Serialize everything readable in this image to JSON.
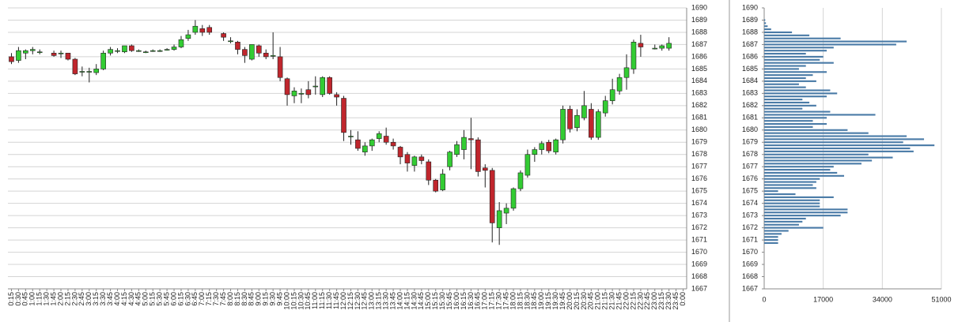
{
  "chart_data": [
    {
      "type": "candlestick",
      "categories": [
        "0:15",
        "0:30",
        "0:45",
        "1:00",
        "1:15",
        "1:30",
        "1:45",
        "2:00",
        "2:15",
        "2:30",
        "2:45",
        "3:00",
        "3:15",
        "3:30",
        "3:45",
        "4:00",
        "4:15",
        "4:30",
        "4:45",
        "5:00",
        "5:15",
        "5:30",
        "5:45",
        "6:00",
        "6:15",
        "6:30",
        "6:45",
        "7:00",
        "7:15",
        "7:30",
        "7:45",
        "8:00",
        "8:15",
        "8:30",
        "8:45",
        "9:00",
        "9:15",
        "9:30",
        "9:45",
        "10:00",
        "10:15",
        "10:30",
        "10:45",
        "11:00",
        "11:15",
        "11:30",
        "11:45",
        "12:00",
        "12:15",
        "12:30",
        "12:45",
        "13:00",
        "13:15",
        "13:30",
        "13:45",
        "14:00",
        "14:15",
        "14:30",
        "14:45",
        "15:00",
        "15:15",
        "15:30",
        "15:45",
        "16:00",
        "16:15",
        "16:30",
        "16:45",
        "17:00",
        "17:15",
        "17:30",
        "17:45",
        "18:00",
        "18:15",
        "18:30",
        "18:45",
        "19:00",
        "19:15",
        "19:30",
        "19:45",
        "20:00",
        "20:15",
        "20:30",
        "20:45",
        "21:00",
        "21:15",
        "21:30",
        "21:45",
        "22:00",
        "22:15",
        "22:30",
        "22:45",
        "23:00",
        "23:15",
        "23:30",
        "23:45",
        "0:00"
      ],
      "open": [
        1686.0,
        1685.7,
        1686.3,
        1686.5,
        1686.4,
        null,
        1686.3,
        1686.3,
        1686.3,
        1685.8,
        1684.8,
        1684.8,
        1684.7,
        1685.0,
        1686.3,
        1686.5,
        1686.4,
        1686.9,
        1686.5,
        1686.4,
        1686.5,
        1686.5,
        1686.6,
        1686.6,
        1686.8,
        1687.5,
        1688.0,
        1688.3,
        1688.4,
        null,
        1687.9,
        1687.3,
        1687.2,
        1686.6,
        1685.8,
        1686.9,
        1686.3,
        1686.1,
        1686.0,
        1684.2,
        1682.8,
        1683.0,
        1683.3,
        1683.6,
        1682.9,
        1684.3,
        1682.9,
        1682.6,
        1679.5,
        1679.2,
        1678.2,
        1678.7,
        1679.3,
        1679.5,
        1679.0,
        1678.6,
        1678.0,
        1677.1,
        1677.8,
        1677.4,
        1675.9,
        1675.1,
        1677.0,
        1678.0,
        1678.4,
        1679.3,
        1679.2,
        1676.9,
        1676.7,
        1672.0,
        1673.2,
        1673.6,
        1675.2,
        1676.3,
        1678.0,
        1678.4,
        1679.0,
        1678.2,
        1679.2,
        1681.7,
        1680.2,
        1681.0,
        1681.7,
        1679.4,
        1681.4,
        1682.4,
        1683.2,
        1684.3,
        1685.0,
        1687.1,
        null,
        1686.7,
        1686.7,
        1686.7,
        null,
        null
      ],
      "high": [
        1686.3,
        1686.8,
        1686.6,
        1686.8,
        1686.6,
        null,
        1686.5,
        1686.5,
        1686.3,
        1685.9,
        1685.2,
        1685.1,
        1685.4,
        1686.5,
        1686.8,
        1686.7,
        1686.9,
        1687.0,
        1686.6,
        1686.5,
        1686.6,
        1686.6,
        1686.7,
        1687.0,
        1687.7,
        1688.2,
        1689.0,
        1688.6,
        1688.6,
        null,
        1688.0,
        1687.6,
        1687.3,
        1686.8,
        1687.0,
        1687.0,
        1686.6,
        1688.0,
        1686.8,
        1684.3,
        1683.5,
        1683.4,
        1684.0,
        1684.4,
        1684.4,
        1684.4,
        1683.1,
        1682.8,
        1680.0,
        1679.9,
        1679.0,
        1679.3,
        1679.9,
        1680.2,
        1679.3,
        1678.7,
        1678.2,
        1677.9,
        1678.0,
        1677.6,
        1676.0,
        1676.8,
        1678.3,
        1679.1,
        1680.0,
        1681.0,
        1679.4,
        1677.2,
        1676.9,
        1674.1,
        1674.0,
        1675.3,
        1676.7,
        1678.4,
        1678.6,
        1679.1,
        1679.2,
        1679.3,
        1682.0,
        1682.0,
        1681.7,
        1683.2,
        1682.2,
        1681.7,
        1682.8,
        1684.2,
        1684.6,
        1686.2,
        1687.4,
        1687.8,
        null,
        1687.0,
        1687.0,
        1687.6,
        null,
        null
      ],
      "low": [
        1685.4,
        1685.5,
        1685.8,
        1686.2,
        1686.2,
        null,
        1686.0,
        1685.9,
        1685.7,
        1684.5,
        1684.4,
        1683.9,
        1684.5,
        1684.9,
        1686.1,
        1686.3,
        1686.3,
        1686.4,
        1686.4,
        1686.3,
        1686.4,
        1686.4,
        1686.5,
        1686.5,
        1686.7,
        1687.3,
        1687.8,
        1687.7,
        1687.8,
        null,
        1687.3,
        1687.1,
        1686.2,
        1685.5,
        1685.7,
        1686.0,
        1685.8,
        1685.8,
        1684.0,
        1682.0,
        1682.2,
        1682.2,
        1682.6,
        1682.9,
        1682.7,
        1682.9,
        1682.0,
        1679.1,
        1678.8,
        1678.3,
        1677.9,
        1678.3,
        1679.0,
        1678.8,
        1678.4,
        1677.2,
        1676.6,
        1676.6,
        1677.2,
        1675.5,
        1674.9,
        1675.0,
        1676.7,
        1677.8,
        1677.6,
        1676.8,
        1676.2,
        1675.3,
        1670.8,
        1670.6,
        1672.3,
        1673.4,
        1675.0,
        1676.1,
        1677.4,
        1678.0,
        1678.1,
        1678.0,
        1678.9,
        1679.8,
        1679.9,
        1680.8,
        1679.2,
        1679.2,
        1681.1,
        1682.1,
        1682.9,
        1683.3,
        1684.6,
        1686.0,
        null,
        1686.6,
        1686.5,
        1686.5,
        null,
        null
      ],
      "close": [
        1685.6,
        1686.5,
        1686.5,
        1686.6,
        1686.4,
        null,
        1686.1,
        1686.3,
        1685.8,
        1684.6,
        1684.8,
        1684.8,
        1685.0,
        1686.3,
        1686.6,
        1686.5,
        1686.9,
        1686.5,
        1686.5,
        1686.4,
        1686.5,
        1686.5,
        1686.6,
        1686.8,
        1687.4,
        1687.8,
        1688.5,
        1688.0,
        1688.0,
        null,
        1687.6,
        1687.3,
        1686.6,
        1686.1,
        1687.0,
        1686.3,
        1686.0,
        1686.1,
        1684.3,
        1682.9,
        1683.2,
        1683.0,
        1682.9,
        1683.6,
        1684.3,
        1683.0,
        1682.7,
        1679.8,
        1679.5,
        1678.5,
        1678.7,
        1679.2,
        1679.7,
        1679.0,
        1678.7,
        1677.8,
        1677.3,
        1677.8,
        1677.5,
        1675.9,
        1675.0,
        1676.4,
        1678.2,
        1678.8,
        1679.4,
        1679.2,
        1676.6,
        1676.7,
        1672.4,
        1673.4,
        1673.6,
        1675.2,
        1676.5,
        1678.0,
        1678.4,
        1678.9,
        1678.3,
        1679.2,
        1681.7,
        1680.1,
        1681.2,
        1682.0,
        1679.4,
        1681.5,
        1682.4,
        1683.3,
        1684.3,
        1685.1,
        1687.2,
        1686.8,
        null,
        1686.7,
        1686.9,
        1687.1,
        null,
        null
      ],
      "up_color": "#33cc33",
      "down_color": "#c0262d",
      "ylim": [
        1667,
        1690
      ],
      "yticks": [
        1667,
        1668,
        1669,
        1670,
        1671,
        1672,
        1673,
        1674,
        1675,
        1676,
        1677,
        1678,
        1679,
        1680,
        1681,
        1682,
        1683,
        1684,
        1685,
        1686,
        1687,
        1688,
        1689,
        1690
      ],
      "grid": true
    },
    {
      "type": "barh",
      "y": [
        1689.0,
        1688.75,
        1688.5,
        1688.25,
        1688.0,
        1687.75,
        1687.5,
        1687.25,
        1687.0,
        1686.75,
        1686.5,
        1686.25,
        1686.0,
        1685.75,
        1685.5,
        1685.25,
        1685.0,
        1684.75,
        1684.5,
        1684.25,
        1684.0,
        1683.75,
        1683.5,
        1683.25,
        1683.0,
        1682.75,
        1682.5,
        1682.25,
        1682.0,
        1681.75,
        1681.5,
        1681.25,
        1681.0,
        1680.75,
        1680.5,
        1680.25,
        1680.0,
        1679.75,
        1679.5,
        1679.25,
        1679.0,
        1678.75,
        1678.5,
        1678.25,
        1678.0,
        1677.75,
        1677.5,
        1677.25,
        1677.0,
        1676.75,
        1676.5,
        1676.25,
        1676.0,
        1675.75,
        1675.5,
        1675.25,
        1675.0,
        1674.75,
        1674.5,
        1674.25,
        1674.0,
        1673.75,
        1673.5,
        1673.25,
        1673.0,
        1672.75,
        1672.5,
        1672.25,
        1672.0,
        1671.75,
        1671.5,
        1671.25,
        1671.0,
        1670.75
      ],
      "values": [
        300,
        500,
        1000,
        2000,
        8000,
        13000,
        22000,
        41000,
        38000,
        20000,
        18000,
        12000,
        17000,
        16000,
        20000,
        12000,
        10000,
        18000,
        14000,
        12000,
        15000,
        10000,
        12000,
        19000,
        21000,
        18000,
        11000,
        13000,
        15000,
        11000,
        19000,
        32000,
        18000,
        14000,
        18000,
        14000,
        24000,
        30000,
        41000,
        46000,
        40000,
        49000,
        42000,
        43000,
        30000,
        37000,
        31000,
        28000,
        20000,
        19000,
        21000,
        23000,
        16000,
        15000,
        14000,
        15000,
        4000,
        9000,
        20000,
        16000,
        16000,
        16000,
        24000,
        24000,
        22000,
        12000,
        11000,
        10000,
        17000,
        7000,
        5000,
        4000,
        4000,
        4000
      ],
      "color": "#4a7ba7",
      "xlim": [
        0,
        51000
      ],
      "xticks": [
        0,
        17000,
        34000,
        51000
      ],
      "ylim": [
        1667,
        1690
      ],
      "yticks": [
        1667,
        1668,
        1669,
        1670,
        1671,
        1672,
        1673,
        1674,
        1675,
        1676,
        1677,
        1678,
        1679,
        1680,
        1681,
        1682,
        1683,
        1684,
        1685,
        1686,
        1687,
        1688,
        1689,
        1690
      ],
      "grid": true
    }
  ]
}
